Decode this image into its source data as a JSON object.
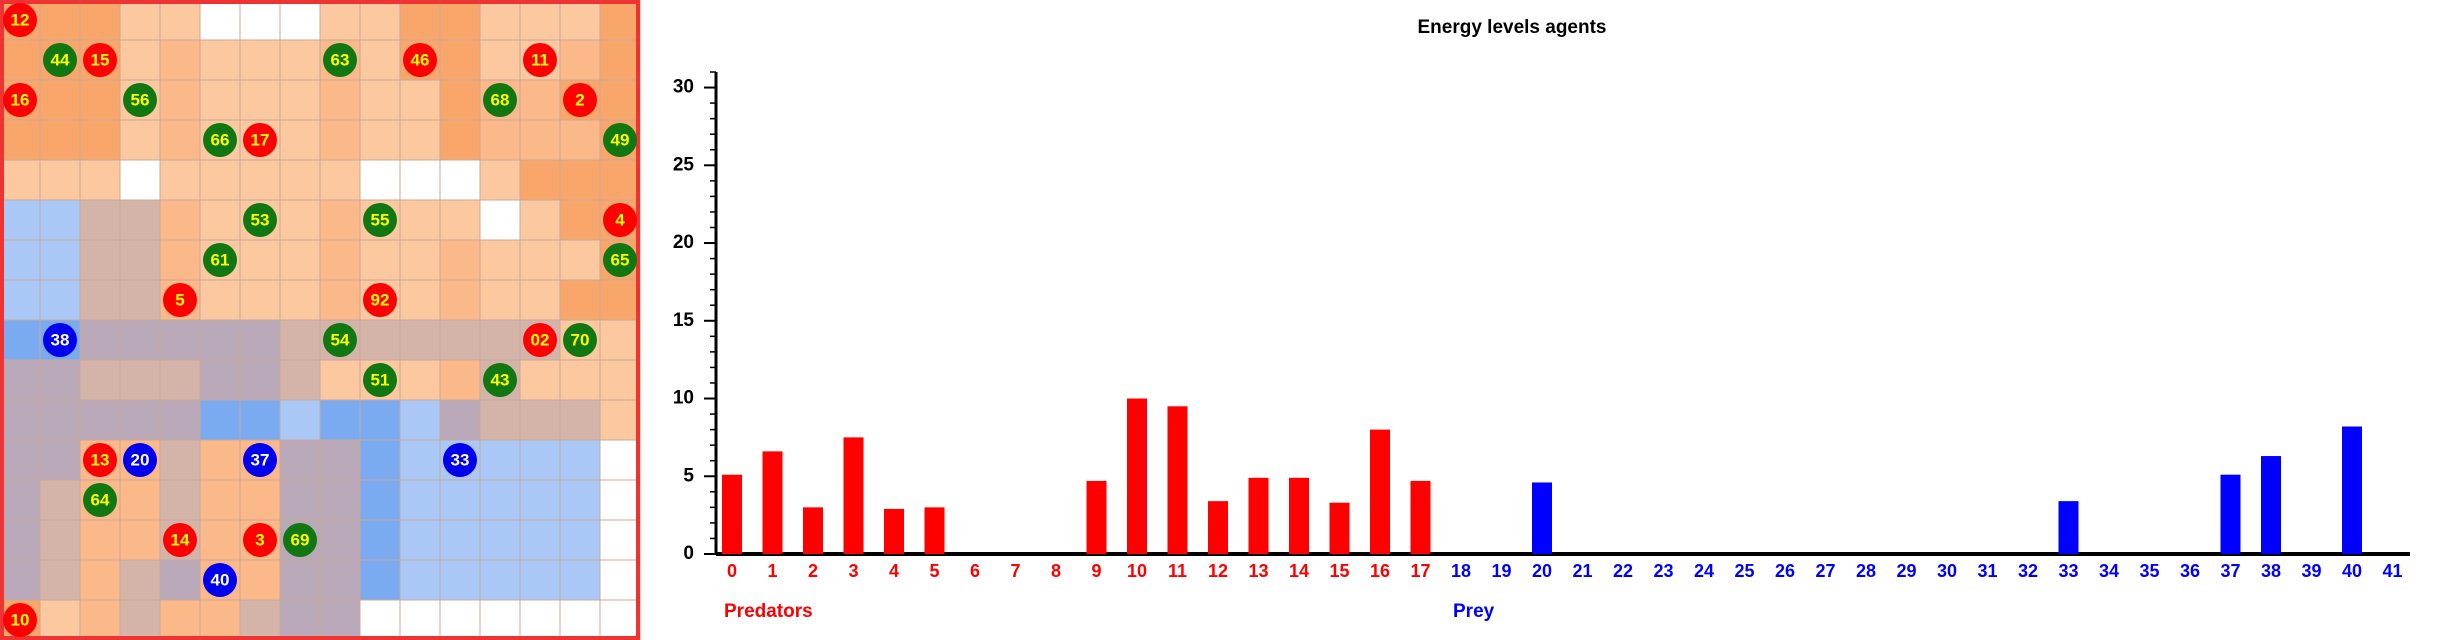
{
  "grid": {
    "agents": [
      {
        "label": "12",
        "kind": "predator"
      },
      {
        "label": "44",
        "kind": "plant"
      },
      {
        "label": "15",
        "kind": "predator"
      },
      {
        "label": "63",
        "kind": "plant"
      },
      {
        "label": "46",
        "kind": "predator"
      },
      {
        "label": "11",
        "kind": "predator"
      },
      {
        "label": "16",
        "kind": "predator"
      },
      {
        "label": "56",
        "kind": "plant"
      },
      {
        "label": "68",
        "kind": "plant"
      },
      {
        "label": "2",
        "kind": "predator"
      },
      {
        "label": "66",
        "kind": "plant"
      },
      {
        "label": "17",
        "kind": "predator"
      },
      {
        "label": "49",
        "kind": "plant"
      },
      {
        "label": "53",
        "kind": "plant"
      },
      {
        "label": "55",
        "kind": "plant"
      },
      {
        "label": "4",
        "kind": "predator"
      },
      {
        "label": "61",
        "kind": "plant"
      },
      {
        "label": "65",
        "kind": "plant"
      },
      {
        "label": "5",
        "kind": "predator"
      },
      {
        "label": "92",
        "kind": "predator"
      },
      {
        "label": "38",
        "kind": "prey"
      },
      {
        "label": "54",
        "kind": "plant"
      },
      {
        "label": "02",
        "kind": "predator"
      },
      {
        "label": "70",
        "kind": "plant"
      },
      {
        "label": "51",
        "kind": "plant"
      },
      {
        "label": "43",
        "kind": "plant"
      },
      {
        "label": "13",
        "kind": "predator"
      },
      {
        "label": "20",
        "kind": "prey"
      },
      {
        "label": "37",
        "kind": "prey"
      },
      {
        "label": "33",
        "kind": "prey"
      },
      {
        "label": "64",
        "kind": "plant"
      },
      {
        "label": "14",
        "kind": "predator"
      },
      {
        "label": "3",
        "kind": "predator"
      },
      {
        "label": "69",
        "kind": "plant"
      },
      {
        "label": "40",
        "kind": "prey"
      },
      {
        "label": "10",
        "kind": "predator"
      }
    ]
  },
  "chart_data": {
    "type": "bar",
    "title": "Energy levels agents",
    "categories": [
      "0",
      "1",
      "2",
      "3",
      "4",
      "5",
      "6",
      "7",
      "8",
      "9",
      "10",
      "11",
      "12",
      "13",
      "14",
      "15",
      "16",
      "17",
      "18",
      "19",
      "20",
      "21",
      "22",
      "23",
      "24",
      "25",
      "26",
      "27",
      "28",
      "29",
      "30",
      "31",
      "32",
      "33",
      "34",
      "35",
      "36",
      "37",
      "38",
      "39",
      "40",
      "41"
    ],
    "series": [
      {
        "name": "Predators",
        "color": "#ff0000",
        "values": [
          5.1,
          6.6,
          3,
          7.5,
          2.9,
          3,
          0,
          0,
          0,
          4.7,
          10,
          9.5,
          3.4,
          4.9,
          4.9,
          3.3,
          8,
          4.7,
          null,
          null,
          null,
          null,
          null,
          null,
          null,
          null,
          null,
          null,
          null,
          null,
          null,
          null,
          null,
          null,
          null,
          null,
          null,
          null,
          null,
          null,
          null,
          null
        ]
      },
      {
        "name": "Prey",
        "color": "#0000ff",
        "values": [
          null,
          null,
          null,
          null,
          null,
          null,
          null,
          null,
          null,
          null,
          null,
          null,
          null,
          null,
          null,
          null,
          null,
          null,
          0,
          0,
          4.6,
          0,
          0,
          0,
          0,
          0,
          0,
          0,
          0,
          0,
          0,
          0,
          0,
          3.4,
          0,
          0,
          0,
          5.1,
          6.3,
          0,
          8.2,
          0
        ]
      }
    ],
    "ylim": [
      0,
      31
    ],
    "yticks": [
      0,
      5,
      10,
      15,
      20,
      25,
      30
    ]
  }
}
